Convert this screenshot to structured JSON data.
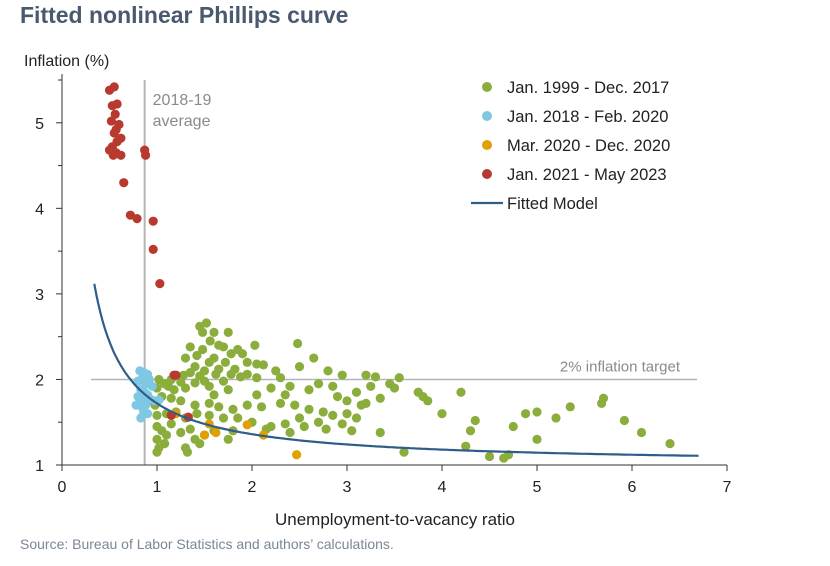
{
  "title": "Fitted nonlinear Phillips curve",
  "source": "Source: Bureau of Labor Statistics and authors’ calculations.",
  "chart_data": {
    "type": "scatter",
    "xlabel": "Unemployment-to-vacancy ratio",
    "ylabel": "Inflation (%)",
    "xlim": [
      0,
      7
    ],
    "ylim": [
      1,
      5.5
    ],
    "xticks": [
      "0",
      "1",
      "2",
      "3",
      "4",
      "5",
      "6",
      "7"
    ],
    "yticks": [
      "1",
      "2",
      "3",
      "4",
      "5"
    ],
    "legend_position": "top-right",
    "annotations": {
      "avg_line_label": [
        "2018-19",
        "average"
      ],
      "avg_line_x": 0.87,
      "target_label": "2% inflation target",
      "target_y": 2.0
    },
    "fitted_model": {
      "name": "Fitted Model",
      "color": "#2f5d8a",
      "form": "1 + 0.72 / x",
      "x_range": [
        0.34,
        6.7
      ]
    },
    "series": [
      {
        "name": "Jan. 1999 - Dec. 2017",
        "color": "#8aad3c",
        "points": [
          [
            1.52,
            2.66
          ],
          [
            1.45,
            2.62
          ],
          [
            1.48,
            2.55
          ],
          [
            1.6,
            2.55
          ],
          [
            1.75,
            2.55
          ],
          [
            1.56,
            2.45
          ],
          [
            1.65,
            2.4
          ],
          [
            1.48,
            2.35
          ],
          [
            1.7,
            2.38
          ],
          [
            1.85,
            2.35
          ],
          [
            1.35,
            2.38
          ],
          [
            2.03,
            2.4
          ],
          [
            1.78,
            2.3
          ],
          [
            1.9,
            2.3
          ],
          [
            1.42,
            2.28
          ],
          [
            1.6,
            2.25
          ],
          [
            1.3,
            2.25
          ],
          [
            1.55,
            2.2
          ],
          [
            1.72,
            2.2
          ],
          [
            1.95,
            2.2
          ],
          [
            2.05,
            2.18
          ],
          [
            2.12,
            2.17
          ],
          [
            1.4,
            2.15
          ],
          [
            1.65,
            2.12
          ],
          [
            1.82,
            2.12
          ],
          [
            1.5,
            2.1
          ],
          [
            1.35,
            2.08
          ],
          [
            1.62,
            2.06
          ],
          [
            1.78,
            2.06
          ],
          [
            1.95,
            2.06
          ],
          [
            1.45,
            2.04
          ],
          [
            1.28,
            2.05
          ],
          [
            1.88,
            2.03
          ],
          [
            2.05,
            2.02
          ],
          [
            1.15,
            2.0
          ],
          [
            1.5,
            1.98
          ],
          [
            1.7,
            1.98
          ],
          [
            1.25,
            1.97
          ],
          [
            1.4,
            1.96
          ],
          [
            1.02,
            2.0
          ],
          [
            1.08,
            1.95
          ],
          [
            1.12,
            1.92
          ],
          [
            1.0,
            1.9
          ],
          [
            1.18,
            1.88
          ],
          [
            1.3,
            1.9
          ],
          [
            1.55,
            1.92
          ],
          [
            2.2,
            1.9
          ],
          [
            2.4,
            1.92
          ],
          [
            2.6,
            1.88
          ],
          [
            2.3,
            2.02
          ],
          [
            2.5,
            2.15
          ],
          [
            2.65,
            2.25
          ],
          [
            2.48,
            2.42
          ],
          [
            2.25,
            2.1
          ],
          [
            2.8,
            2.1
          ],
          [
            2.95,
            2.05
          ],
          [
            3.2,
            2.05
          ],
          [
            3.3,
            2.03
          ],
          [
            3.55,
            2.02
          ],
          [
            3.25,
            1.92
          ],
          [
            3.45,
            1.95
          ],
          [
            3.1,
            1.85
          ],
          [
            2.9,
            1.8
          ],
          [
            3.0,
            1.75
          ],
          [
            3.2,
            1.72
          ],
          [
            3.35,
            1.78
          ],
          [
            3.5,
            1.9
          ],
          [
            3.75,
            1.85
          ],
          [
            3.8,
            1.8
          ],
          [
            3.85,
            1.75
          ],
          [
            4.2,
            1.85
          ],
          [
            4.0,
            1.6
          ],
          [
            4.35,
            1.52
          ],
          [
            4.3,
            1.4
          ],
          [
            4.25,
            1.22
          ],
          [
            4.5,
            1.1
          ],
          [
            4.65,
            1.08
          ],
          [
            4.75,
            1.45
          ],
          [
            4.7,
            1.12
          ],
          [
            5.0,
            1.3
          ],
          [
            5.2,
            1.55
          ],
          [
            5.35,
            1.68
          ],
          [
            5.0,
            1.62
          ],
          [
            4.88,
            1.6
          ],
          [
            5.7,
            1.78
          ],
          [
            5.68,
            1.72
          ],
          [
            5.92,
            1.52
          ],
          [
            6.1,
            1.38
          ],
          [
            6.4,
            1.25
          ],
          [
            1.05,
            1.8
          ],
          [
            1.15,
            1.78
          ],
          [
            1.25,
            1.75
          ],
          [
            1.4,
            1.7
          ],
          [
            1.55,
            1.72
          ],
          [
            1.65,
            1.68
          ],
          [
            1.8,
            1.65
          ],
          [
            1.95,
            1.7
          ],
          [
            2.1,
            1.68
          ],
          [
            2.3,
            1.72
          ],
          [
            2.45,
            1.7
          ],
          [
            2.6,
            1.65
          ],
          [
            2.75,
            1.62
          ],
          [
            2.85,
            1.58
          ],
          [
            3.0,
            1.6
          ],
          [
            3.1,
            1.55
          ],
          [
            2.95,
            1.48
          ],
          [
            2.7,
            1.5
          ],
          [
            2.5,
            1.55
          ],
          [
            2.35,
            1.48
          ],
          [
            2.2,
            1.45
          ],
          [
            2.0,
            1.5
          ],
          [
            1.85,
            1.55
          ],
          [
            1.7,
            1.55
          ],
          [
            1.55,
            1.58
          ],
          [
            1.42,
            1.6
          ],
          [
            1.3,
            1.55
          ],
          [
            1.2,
            1.62
          ],
          [
            1.1,
            1.6
          ],
          [
            1.0,
            1.58
          ],
          [
            0.98,
            1.7
          ],
          [
            0.95,
            1.75
          ],
          [
            1.0,
            1.45
          ],
          [
            1.05,
            1.4
          ],
          [
            1.0,
            1.3
          ],
          [
            1.08,
            1.25
          ],
          [
            1.02,
            1.2
          ],
          [
            1.0,
            1.15
          ],
          [
            1.1,
            1.35
          ],
          [
            1.15,
            1.48
          ],
          [
            1.25,
            1.38
          ],
          [
            1.35,
            1.42
          ],
          [
            1.4,
            1.3
          ],
          [
            1.5,
            1.35
          ],
          [
            1.3,
            1.2
          ],
          [
            1.32,
            1.15
          ],
          [
            1.45,
            1.25
          ],
          [
            1.6,
            1.4
          ],
          [
            1.75,
            1.3
          ],
          [
            1.8,
            1.4
          ],
          [
            2.15,
            1.42
          ],
          [
            2.4,
            1.38
          ],
          [
            2.55,
            1.45
          ],
          [
            2.78,
            1.42
          ],
          [
            3.05,
            1.4
          ],
          [
            3.35,
            1.38
          ],
          [
            3.6,
            1.15
          ],
          [
            3.15,
            1.7
          ],
          [
            2.35,
            1.82
          ],
          [
            2.05,
            1.82
          ],
          [
            1.75,
            1.88
          ],
          [
            1.6,
            1.82
          ],
          [
            2.7,
            1.95
          ],
          [
            2.85,
            1.92
          ]
        ]
      },
      {
        "name": "Jan. 2018 - Feb. 2020",
        "color": "#7ec8e3",
        "points": [
          [
            0.82,
            2.1
          ],
          [
            0.86,
            2.08
          ],
          [
            0.9,
            2.06
          ],
          [
            0.85,
            2.02
          ],
          [
            0.92,
            2.0
          ],
          [
            0.8,
            1.98
          ],
          [
            0.88,
            1.95
          ],
          [
            0.95,
            1.92
          ],
          [
            0.83,
            1.88
          ],
          [
            0.87,
            1.85
          ],
          [
            0.9,
            1.82
          ],
          [
            0.8,
            1.8
          ],
          [
            0.85,
            1.78
          ],
          [
            0.93,
            1.77
          ],
          [
            0.98,
            1.75
          ],
          [
            1.02,
            1.76
          ],
          [
            0.82,
            1.72
          ],
          [
            0.88,
            1.7
          ],
          [
            0.84,
            1.68
          ],
          [
            0.78,
            1.7
          ],
          [
            0.86,
            1.62
          ],
          [
            0.9,
            1.6
          ],
          [
            0.83,
            1.55
          ]
        ]
      },
      {
        "name": "Mar. 2020 - Dec. 2020",
        "color": "#e0a000",
        "points": [
          [
            1.2,
            1.6
          ],
          [
            1.55,
            1.48
          ],
          [
            1.62,
            1.38
          ],
          [
            1.5,
            1.35
          ],
          [
            1.95,
            1.47
          ],
          [
            2.12,
            1.35
          ],
          [
            2.47,
            1.12
          ]
        ]
      },
      {
        "name": "Jan. 2021 - May 2023",
        "color": "#b83a2f",
        "points": [
          [
            0.55,
            5.42
          ],
          [
            0.5,
            5.38
          ],
          [
            0.58,
            5.22
          ],
          [
            0.53,
            5.2
          ],
          [
            0.56,
            5.1
          ],
          [
            0.52,
            5.02
          ],
          [
            0.6,
            4.98
          ],
          [
            0.57,
            4.92
          ],
          [
            0.55,
            4.88
          ],
          [
            0.62,
            4.82
          ],
          [
            0.58,
            4.78
          ],
          [
            0.53,
            4.72
          ],
          [
            0.5,
            4.68
          ],
          [
            0.57,
            4.65
          ],
          [
            0.62,
            4.62
          ],
          [
            0.54,
            4.62
          ],
          [
            0.87,
            4.68
          ],
          [
            0.88,
            4.62
          ],
          [
            0.65,
            4.3
          ],
          [
            0.72,
            3.92
          ],
          [
            0.79,
            3.88
          ],
          [
            0.96,
            3.85
          ],
          [
            0.96,
            3.52
          ],
          [
            1.03,
            3.12
          ],
          [
            1.18,
            2.05
          ],
          [
            1.2,
            2.05
          ],
          [
            1.15,
            1.58
          ],
          [
            1.33,
            1.56
          ]
        ]
      }
    ]
  }
}
